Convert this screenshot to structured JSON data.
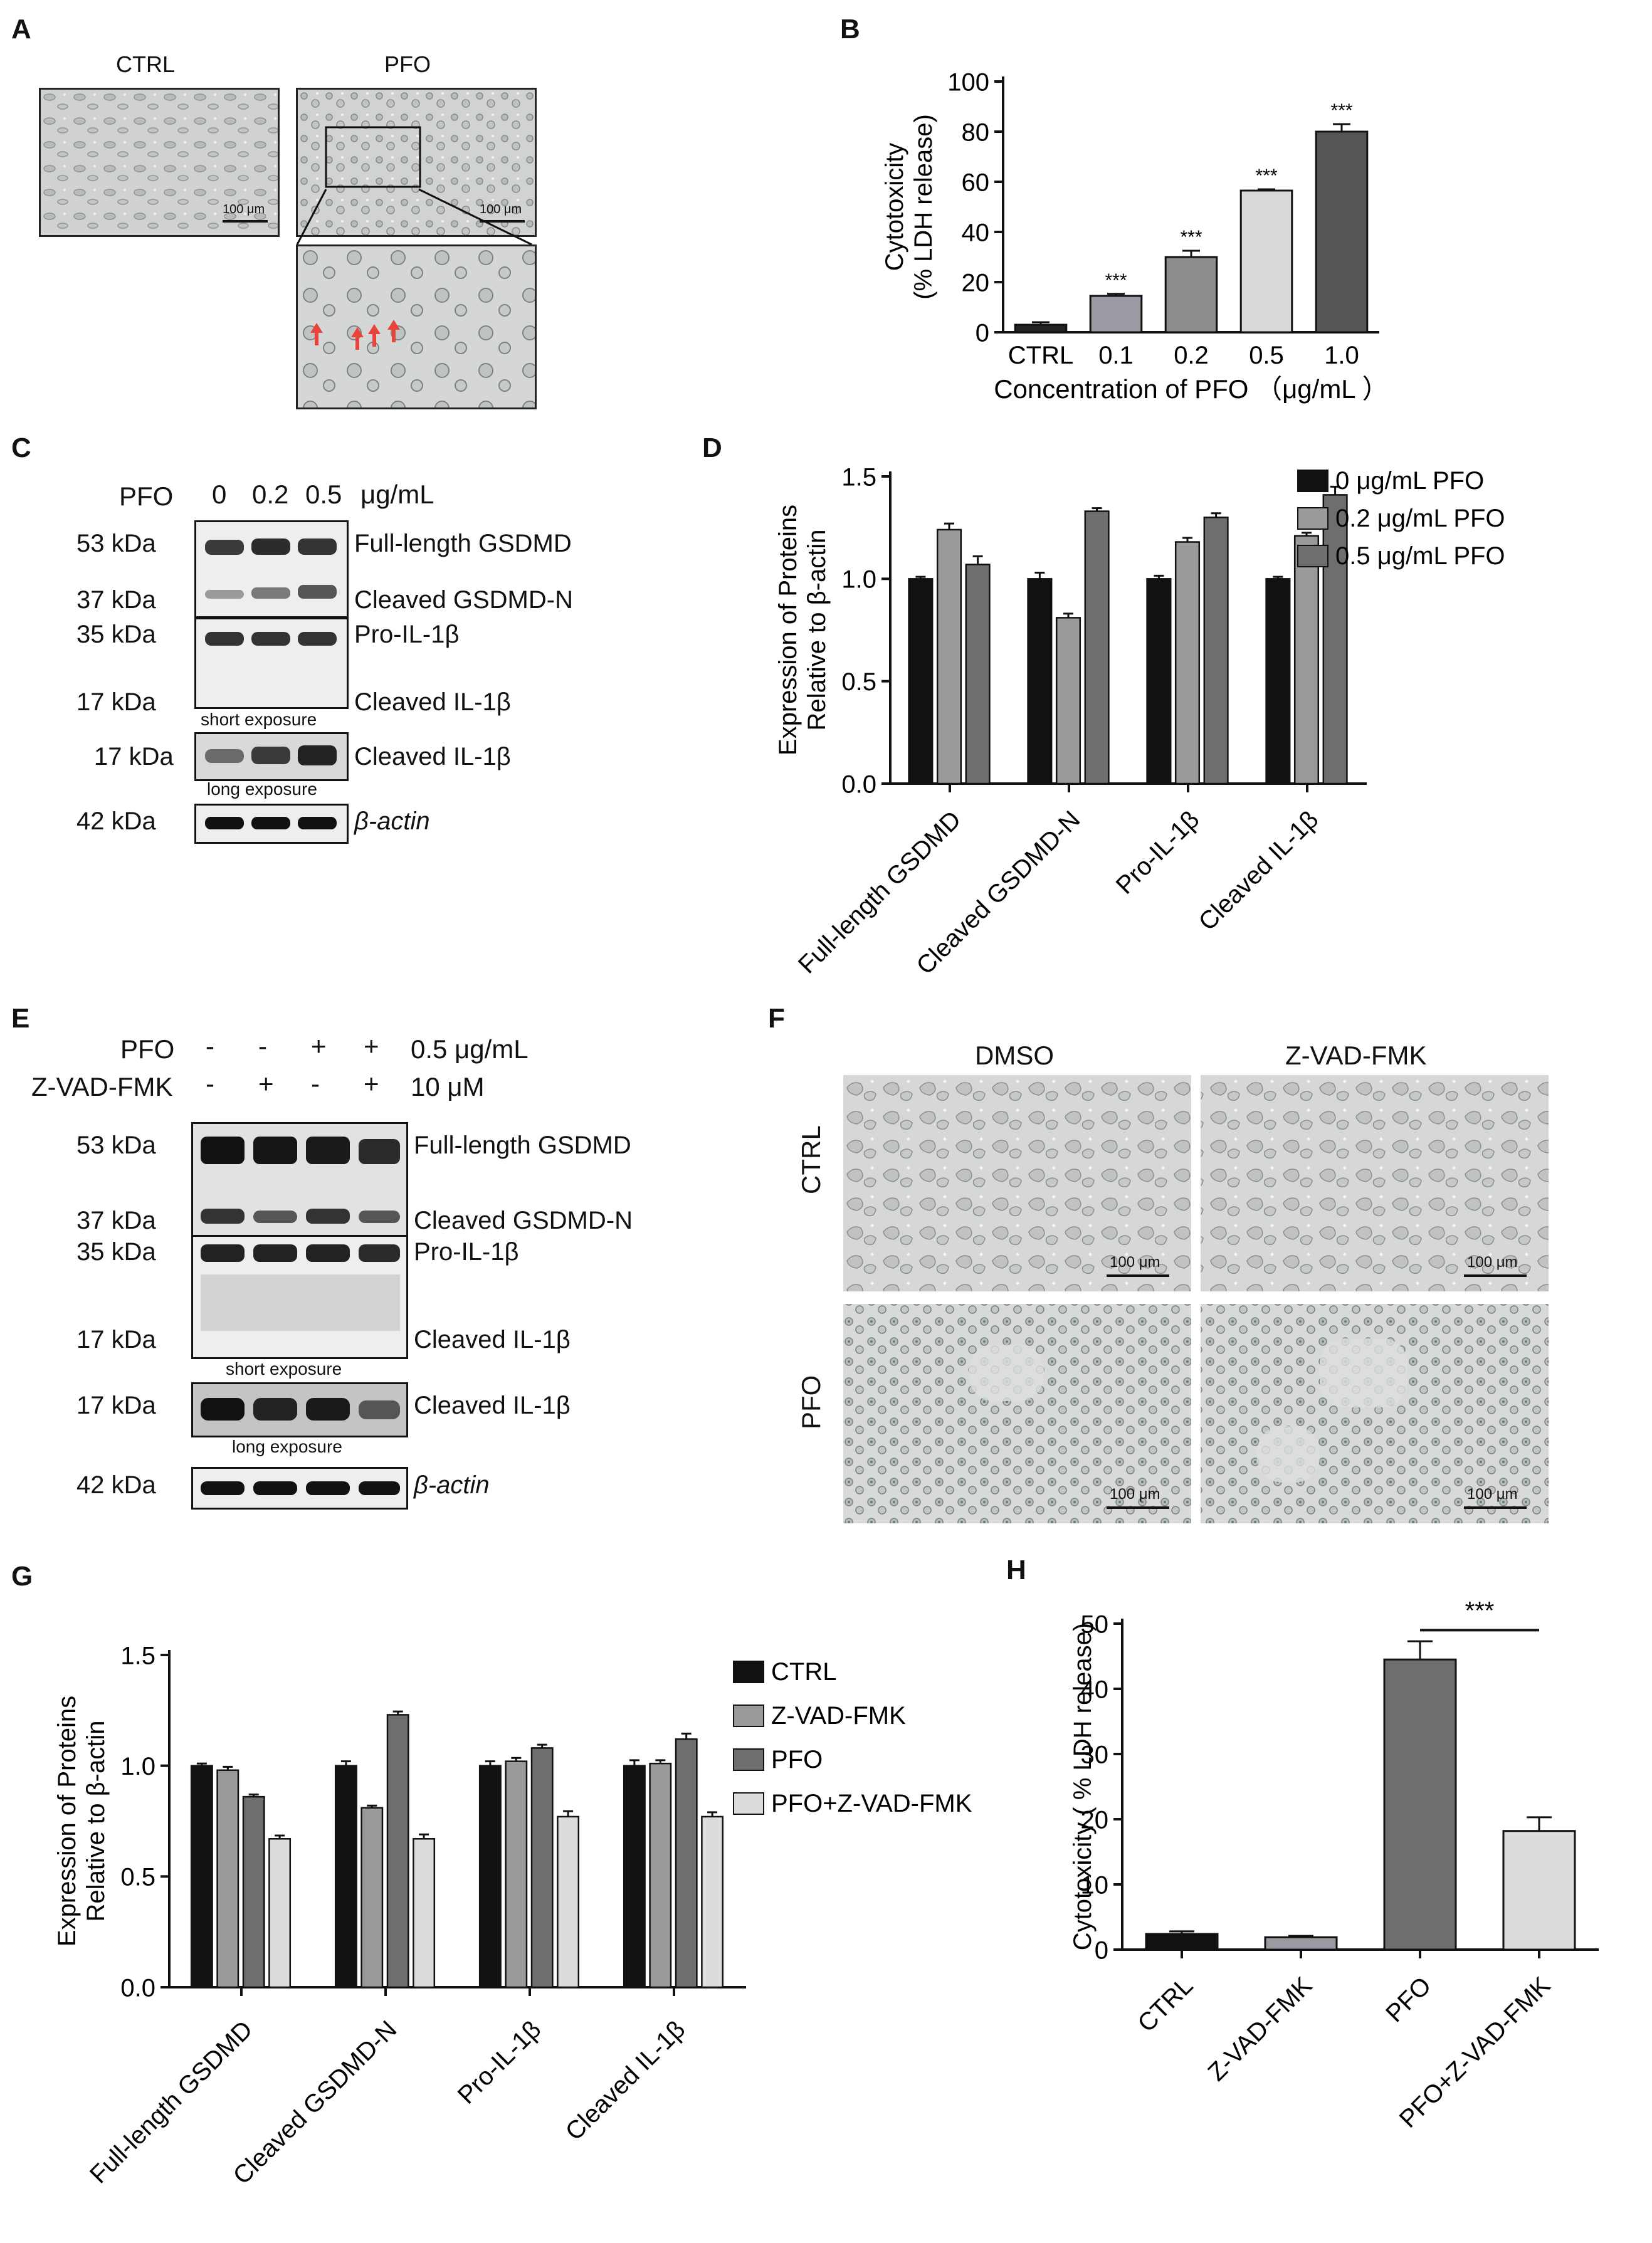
{
  "panels": {
    "A": {
      "label": "A",
      "titles": [
        "CTRL",
        "PFO"
      ],
      "scalebars": [
        "100 μm",
        "100 μm"
      ]
    },
    "B": {
      "label": "B"
    },
    "C": {
      "label": "C",
      "top_label": "PFO",
      "lanes": [
        "0",
        "0.2",
        "0.5"
      ],
      "unit": "μg/mL",
      "blots": [
        {
          "kda": [
            "53 kDa",
            "37 kDa"
          ],
          "bands": [
            "Full-length GSDMD",
            "Cleaved GSDMD-N"
          ]
        },
        {
          "kda": [
            "35 kDa",
            "17 kDa"
          ],
          "bands": [
            "Pro-IL-1β",
            "Cleaved IL-1β"
          ],
          "note": "short exposure"
        },
        {
          "kda": [
            "17 kDa"
          ],
          "bands": [
            "Cleaved IL-1β"
          ],
          "note": "long exposure"
        },
        {
          "kda": [
            "42 kDa"
          ],
          "bands": [
            "β-actin"
          ]
        }
      ]
    },
    "D": {
      "label": "D"
    },
    "E": {
      "label": "E",
      "row1": {
        "name": "PFO",
        "signs": [
          "-",
          "-",
          "+",
          "+"
        ],
        "unit": "0.5 μg/mL"
      },
      "row2": {
        "name": "Z-VAD-FMK",
        "signs": [
          "-",
          "+",
          "-",
          "+"
        ],
        "unit": "10 μM"
      },
      "blots": [
        {
          "kda": [
            "53 kDa",
            "37 kDa"
          ],
          "bands": [
            "Full-length GSDMD",
            "Cleaved GSDMD-N"
          ]
        },
        {
          "kda": [
            "35 kDa",
            "17 kDa"
          ],
          "bands": [
            "Pro-IL-1β",
            "Cleaved IL-1β"
          ],
          "note": "short exposure"
        },
        {
          "kda": [
            "17 kDa"
          ],
          "bands": [
            "Cleaved IL-1β"
          ],
          "note": "long exposure"
        },
        {
          "kda": [
            "42 kDa"
          ],
          "bands": [
            "β-actin"
          ]
        }
      ]
    },
    "F": {
      "label": "F",
      "cols": [
        "DMSO",
        "Z-VAD-FMK"
      ],
      "rows": [
        "CTRL",
        "PFO"
      ],
      "scalebar": "100 μm"
    },
    "G": {
      "label": "G"
    },
    "H": {
      "label": "H"
    }
  },
  "chart_data": [
    {
      "id": "B",
      "type": "bar",
      "categories": [
        "CTRL",
        "0.1",
        "0.2",
        "0.5",
        "1.0"
      ],
      "values": [
        3,
        14.5,
        30,
        56.5,
        80
      ],
      "errors": [
        1,
        0.8,
        2.5,
        0.5,
        3
      ],
      "annotations": [
        "",
        "***",
        "***",
        "***",
        "***"
      ],
      "colors": [
        "#222222",
        "#9a9aa2",
        "#8c8c8c",
        "#d9d9d9",
        "#555555"
      ],
      "ylabel_lines": [
        "Cytotoxicity",
        "(% LDH release)"
      ],
      "xlabel": "Concentration of PFO （μg/mL ）",
      "ylim": [
        0,
        100
      ],
      "yticks": [
        "0",
        "20",
        "40",
        "60",
        "80",
        "100"
      ]
    },
    {
      "id": "D",
      "type": "bar",
      "categories": [
        "Full-length GSDMD",
        "Cleaved GSDMD-N",
        "Pro-IL-1β",
        "Cleaved IL-1β"
      ],
      "series": [
        {
          "name": "0 μg/mL PFO",
          "color": "#111111",
          "values": [
            1.0,
            1.0,
            1.0,
            1.0
          ],
          "errors": [
            0.01,
            0.03,
            0.015,
            0.01
          ]
        },
        {
          "name": "0.2 μg/mL PFO",
          "color": "#9a9a9a",
          "values": [
            1.24,
            0.81,
            1.18,
            1.21
          ],
          "errors": [
            0.03,
            0.02,
            0.02,
            0.015
          ]
        },
        {
          "name": "0.5 μg/mL PFO",
          "color": "#6e6e6e",
          "values": [
            1.07,
            1.33,
            1.3,
            1.41
          ],
          "errors": [
            0.04,
            0.015,
            0.02,
            0.04
          ]
        }
      ],
      "ylabel_lines": [
        "Expression of Proteins",
        "Relative to β-actin"
      ],
      "ylim": [
        0,
        1.5
      ],
      "yticks": [
        "0.0",
        "0.5",
        "1.0",
        "1.5"
      ],
      "legend": "right"
    },
    {
      "id": "G",
      "type": "bar",
      "categories": [
        "Full-length GSDMD",
        "Cleaved GSDMD-N",
        "Pro-IL-1β",
        "Cleaved IL-1β"
      ],
      "series": [
        {
          "name": "CTRL",
          "color": "#111111",
          "values": [
            1.0,
            1.0,
            1.0,
            1.0
          ],
          "errors": [
            0.01,
            0.02,
            0.02,
            0.025
          ]
        },
        {
          "name": "Z-VAD-FMK",
          "color": "#9a9a9a",
          "values": [
            0.98,
            0.81,
            1.02,
            1.01
          ],
          "errors": [
            0.015,
            0.01,
            0.015,
            0.015
          ]
        },
        {
          "name": "PFO",
          "color": "#6e6e6e",
          "values": [
            0.86,
            1.23,
            1.08,
            1.12
          ],
          "errors": [
            0.01,
            0.015,
            0.015,
            0.025
          ]
        },
        {
          "name": "PFO+Z-VAD-FMK",
          "color": "#dcdcdc",
          "values": [
            0.67,
            0.67,
            0.77,
            0.77
          ],
          "errors": [
            0.015,
            0.02,
            0.025,
            0.02
          ]
        }
      ],
      "ylabel_lines": [
        "Expression of Proteins",
        "Relative to β-actin"
      ],
      "ylim": [
        0,
        1.5
      ],
      "yticks": [
        "0.0",
        "0.5",
        "1.0",
        "1.5"
      ],
      "legend": "right"
    },
    {
      "id": "H",
      "type": "bar",
      "categories": [
        "CTRL",
        "Z-VAD-FMK",
        "PFO",
        "PFO+Z-VAD-FMK"
      ],
      "values": [
        2.4,
        1.9,
        44.5,
        18.2
      ],
      "errors": [
        0.4,
        0.2,
        2.8,
        2.1
      ],
      "colors": [
        "#111111",
        "#9a9aa2",
        "#6e6e6e",
        "#dcdcdc"
      ],
      "ylabel": "Cytotoxicity ( % LDH release)",
      "ylim": [
        0,
        50
      ],
      "yticks": [
        "0",
        "10",
        "20",
        "30",
        "40",
        "50"
      ],
      "significance": {
        "label": "***",
        "between": [
          2,
          3
        ]
      }
    }
  ]
}
